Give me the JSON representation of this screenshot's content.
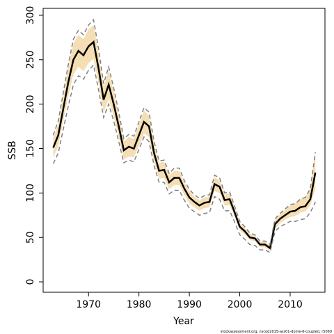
{
  "chart_data": {
    "type": "line",
    "xlabel": "Year",
    "ylabel": "SSB",
    "footnote": "stockassessment.org, nscod2015-ass01-dome-6-coupled, r5060",
    "x": [
      1963,
      1964,
      1965,
      1966,
      1967,
      1968,
      1969,
      1970,
      1971,
      1972,
      1973,
      1974,
      1975,
      1976,
      1977,
      1978,
      1979,
      1980,
      1981,
      1982,
      1983,
      1984,
      1985,
      1986,
      1987,
      1988,
      1989,
      1990,
      1991,
      1992,
      1993,
      1994,
      1995,
      1996,
      1997,
      1998,
      1999,
      2000,
      2001,
      2002,
      2003,
      2004,
      2005,
      2006,
      2007,
      2008,
      2009,
      2010,
      2011,
      2012,
      2013,
      2014,
      2015
    ],
    "band": {
      "color": "#f5deb3",
      "upper": [
        162,
        177,
        209,
        241,
        268,
        278,
        273,
        284,
        289,
        257,
        219,
        238,
        214,
        187,
        158,
        163,
        161,
        177,
        193,
        187,
        155,
        134,
        135,
        120,
        125,
        125,
        112,
        102,
        96,
        92,
        95,
        96,
        118,
        114,
        98,
        100,
        83,
        66,
        61,
        54,
        52,
        45,
        45,
        41,
        70,
        76,
        81,
        86,
        88,
        93,
        95,
        106,
        148
      ],
      "lower": [
        140,
        153,
        181,
        209,
        233,
        242,
        237,
        246,
        251,
        223,
        191,
        206,
        186,
        163,
        138,
        141,
        140,
        153,
        167,
        163,
        135,
        116,
        117,
        104,
        109,
        109,
        98,
        88,
        84,
        80,
        83,
        84,
        102,
        100,
        86,
        86,
        73,
        58,
        53,
        47,
        46,
        39,
        39,
        35,
        60,
        66,
        70,
        73,
        74,
        78,
        79,
        86,
        105
      ]
    },
    "series": [
      {
        "color": "#000000",
        "style": "solid",
        "values": [
          151,
          165,
          195,
          225,
          250,
          260,
          255,
          265,
          270,
          240,
          205,
          222,
          200,
          175,
          148,
          152,
          150,
          165,
          180,
          175,
          145,
          125,
          126,
          112,
          117,
          117,
          105,
          95,
          90,
          86,
          89,
          90,
          110,
          107,
          92,
          93,
          78,
          62,
          57,
          50,
          49,
          42,
          42,
          38,
          65,
          71,
          75,
          79,
          80,
          84,
          85,
          93,
          123
        ]
      },
      {
        "color": "#808080",
        "style": "dashed",
        "values": [
          165,
          181,
          213,
          245,
          273,
          283,
          278,
          289,
          295,
          262,
          223,
          242,
          218,
          191,
          161,
          166,
          164,
          180,
          196,
          191,
          158,
          136,
          137,
          122,
          128,
          128,
          114,
          104,
          98,
          94,
          97,
          98,
          120,
          117,
          100,
          101,
          85,
          68,
          62,
          55,
          53,
          46,
          46,
          42,
          71,
          77,
          82,
          87,
          88,
          93,
          95,
          105,
          146
        ]
      },
      {
        "color": "#808080",
        "style": "dashed",
        "values": [
          133,
          145,
          172,
          198,
          222,
          232,
          228,
          238,
          244,
          216,
          185,
          200,
          181,
          158,
          134,
          137,
          135,
          149,
          163,
          158,
          131,
          112,
          112,
          99,
          103,
          103,
          92,
          83,
          79,
          75,
          77,
          78,
          96,
          93,
          80,
          80,
          67,
          53,
          48,
          42,
          41,
          36,
          36,
          33,
          57,
          62,
          65,
          68,
          68,
          70,
          71,
          78,
          90
        ]
      }
    ],
    "xlim": [
      1961.0,
      2016.9
    ],
    "ylim": [
      -11.7,
      307.8
    ],
    "xticks": [
      1970,
      1980,
      1990,
      2000,
      2010
    ],
    "yticks": [
      0,
      50,
      100,
      150,
      200,
      250,
      300
    ]
  }
}
